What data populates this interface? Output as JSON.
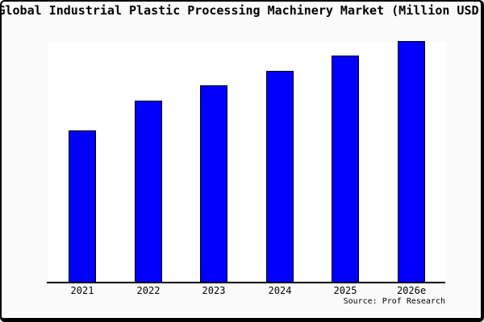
{
  "title": "Global Industrial Plastic Processing Machinery Market (Million USD)",
  "source_label": "Source: Prof Research",
  "colors": {
    "background": "#fafafa",
    "plot_background": "#ffffff",
    "bar_fill": "#0000fb",
    "bar_outline": "#000000",
    "axis": "#000000",
    "frame": "#000000",
    "text": "#000000"
  },
  "chart_data": {
    "type": "bar",
    "title": "Global Industrial Plastic Processing Machinery Market (Million USD)",
    "categories": [
      "2021",
      "2022",
      "2023",
      "2024",
      "2025",
      "2026e"
    ],
    "values": [
      189,
      226,
      245,
      263,
      282,
      300
    ],
    "values_note": "No y-axis, gridlines or value labels are shown in the image; values are relative bar heights in pixels showing steady year-over-year growth, with 2026e the tallest bar.",
    "xlabel": "",
    "ylabel": "",
    "legend_visible": false,
    "grid": false,
    "y_axis_visible": false,
    "source": "Source: Prof Research"
  }
}
